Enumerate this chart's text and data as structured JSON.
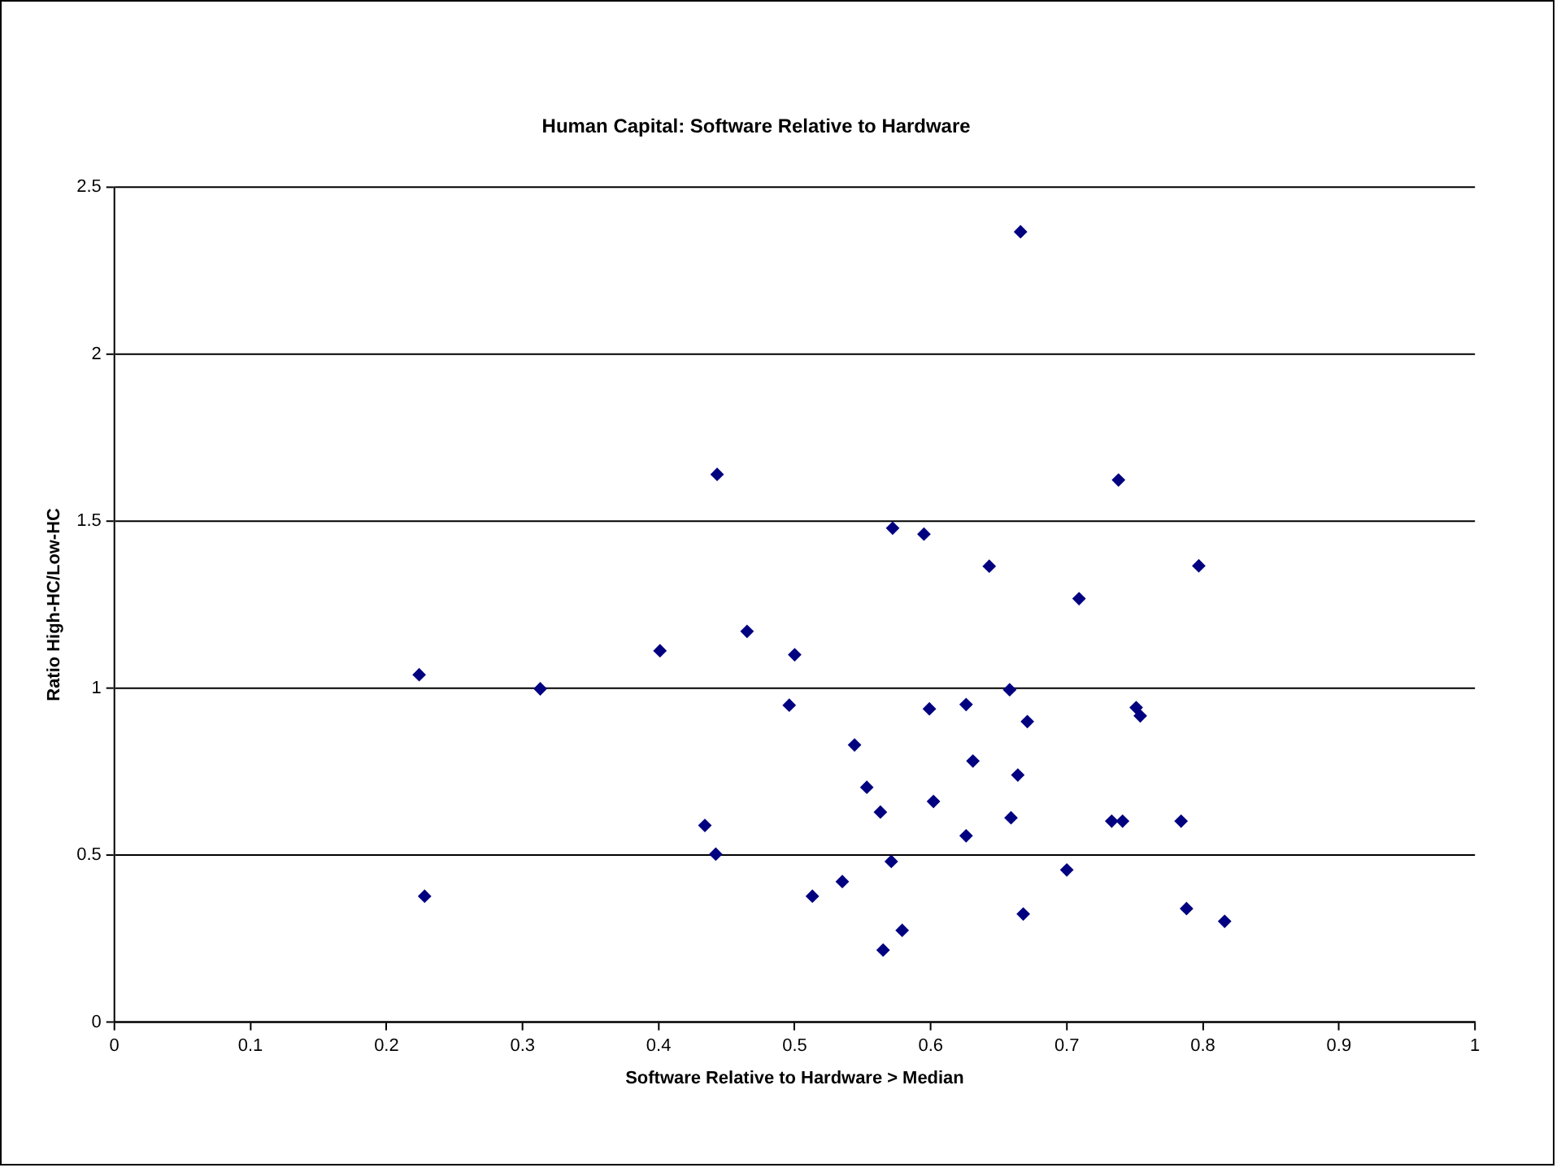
{
  "chart_data": {
    "type": "scatter",
    "title": "Human Capital: Software Relative to Hardware",
    "xlabel": "Software Relative to Hardware > Median",
    "ylabel": "Ratio High-HC/Low-HC",
    "series": [
      {
        "color": "#000080",
        "x": [
          0.443,
          0.224,
          0.313,
          0.401,
          0.465,
          0.434,
          0.442,
          0.228,
          0.666,
          0.738,
          0.572,
          0.595,
          0.643,
          0.797,
          0.709,
          0.5,
          0.496,
          0.658,
          0.599,
          0.626,
          0.671,
          0.751,
          0.754,
          0.544,
          0.631,
          0.664,
          0.553,
          0.602,
          0.563,
          0.659,
          0.733,
          0.741,
          0.784,
          0.626,
          0.571,
          0.7,
          0.535,
          0.513,
          0.668,
          0.788,
          0.816,
          0.579,
          0.565
        ],
        "values": [
          1.64,
          1.04,
          0.998,
          1.112,
          1.17,
          0.589,
          0.503,
          0.377,
          2.366,
          1.623,
          1.479,
          1.461,
          1.365,
          1.366,
          1.268,
          1.1,
          0.949,
          0.995,
          0.938,
          0.951,
          0.9,
          0.942,
          0.917,
          0.83,
          0.782,
          0.74,
          0.703,
          0.661,
          0.629,
          0.612,
          0.602,
          0.602,
          0.602,
          0.558,
          0.481,
          0.456,
          0.421,
          0.377,
          0.324,
          0.34,
          0.302,
          0.275,
          0.216
        ]
      }
    ],
    "xlim": [
      0,
      1
    ],
    "xticks": [
      0,
      0.1,
      0.2,
      0.3,
      0.4,
      0.5,
      0.6,
      0.7,
      0.8,
      0.9,
      1
    ],
    "ylim": [
      0,
      2.5
    ],
    "yticks": [
      0,
      0.5,
      1,
      1.5,
      2,
      2.5
    ],
    "grid": "y",
    "legend": false,
    "marker": "diamond"
  }
}
